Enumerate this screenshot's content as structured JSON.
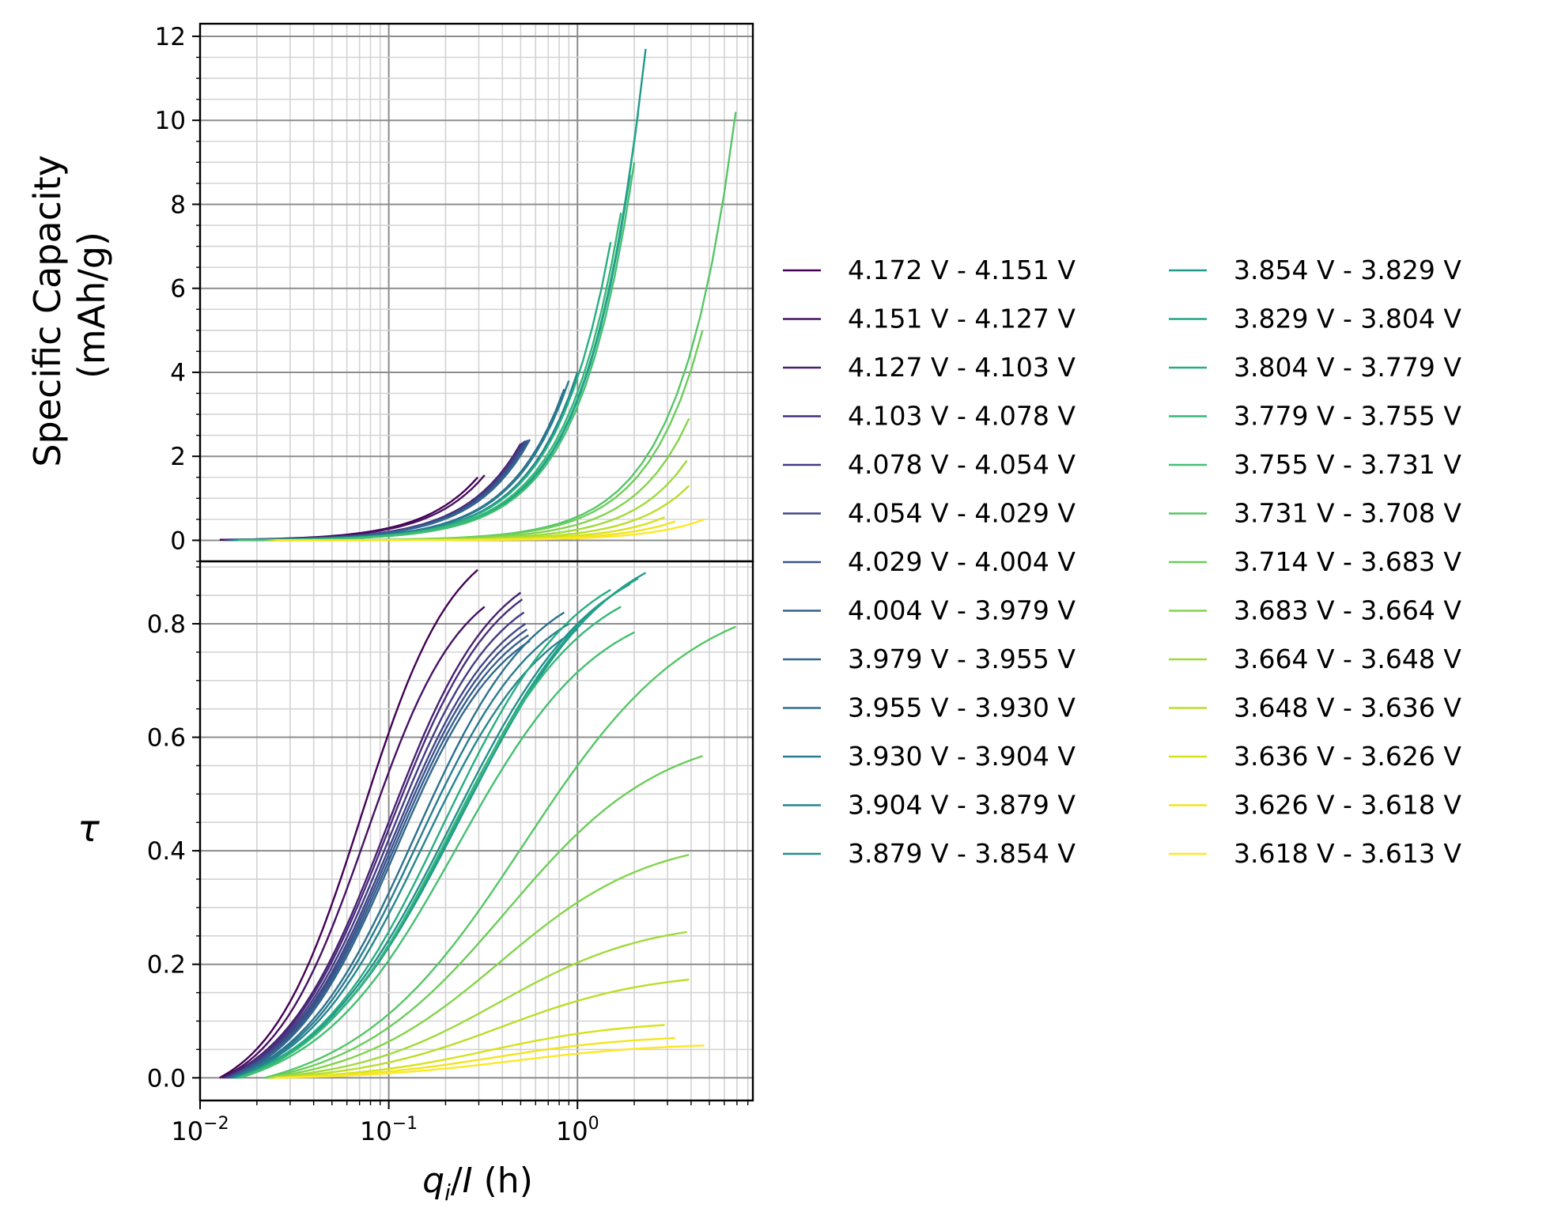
{
  "chart_data": {
    "type": "line",
    "xlabel": "q_i/I (h)",
    "x_scale": "log",
    "xlim": [
      0.01,
      8.5
    ],
    "x_ticks": [
      {
        "base": "10",
        "exp": "−2"
      },
      {
        "base": "10",
        "exp": "−1"
      },
      {
        "base": "10",
        "exp": "0"
      }
    ],
    "grid": true,
    "legend_location": "right (outside), two columns",
    "colormap": "viridis",
    "panels": [
      {
        "name": "capacity",
        "ylabel_lines": [
          "Specific Capacity",
          "(mAh/g)"
        ],
        "ylim": [
          -0.5,
          12.3
        ],
        "y_ticks": [
          "0",
          "2",
          "4",
          "6",
          "8",
          "10",
          "12"
        ]
      },
      {
        "name": "tau",
        "ylabel": "τ",
        "ylim": [
          -0.04,
          0.91
        ],
        "y_ticks": [
          "0.0",
          "0.2",
          "0.4",
          "0.6",
          "0.8"
        ]
      }
    ],
    "series": [
      {
        "name": "4.172 V - 4.151 V",
        "color": "#440154",
        "x_start": 0.0127,
        "x_end": 0.296,
        "capacity_end": 1.5,
        "tau_end": 0.895
      },
      {
        "name": "4.151 V - 4.127 V",
        "color": "#471164",
        "x_start": 0.0131,
        "x_end": 0.322,
        "capacity_end": 1.55,
        "tau_end": 0.83
      },
      {
        "name": "4.127 V - 4.103 V",
        "color": "#482071",
        "x_start": 0.0133,
        "x_end": 0.5,
        "capacity_end": 2.3,
        "tau_end": 0.855
      },
      {
        "name": "4.103 V - 4.078 V",
        "color": "#472e7c",
        "x_start": 0.0135,
        "x_end": 0.51,
        "capacity_end": 2.32,
        "tau_end": 0.843
      },
      {
        "name": "4.078 V - 4.054 V",
        "color": "#443b84",
        "x_start": 0.0137,
        "x_end": 0.52,
        "capacity_end": 2.35,
        "tau_end": 0.82
      },
      {
        "name": "4.054 V - 4.029 V",
        "color": "#404688",
        "x_start": 0.0139,
        "x_end": 0.53,
        "capacity_end": 2.37,
        "tau_end": 0.8
      },
      {
        "name": "4.029 V - 4.004 V",
        "color": "#3b528b",
        "x_start": 0.0141,
        "x_end": 0.54,
        "capacity_end": 2.38,
        "tau_end": 0.79
      },
      {
        "name": "4.004 V - 3.979 V",
        "color": "#365d8d",
        "x_start": 0.0143,
        "x_end": 0.55,
        "capacity_end": 2.39,
        "tau_end": 0.78
      },
      {
        "name": "3.979 V - 3.955 V",
        "color": "#31678e",
        "x_start": 0.0145,
        "x_end": 0.56,
        "capacity_end": 2.4,
        "tau_end": 0.77
      },
      {
        "name": "3.955 V - 3.930 V",
        "color": "#2c718e",
        "x_start": 0.0147,
        "x_end": 0.85,
        "capacity_end": 3.6,
        "tau_end": 0.82
      },
      {
        "name": "3.930 V - 3.904 V",
        "color": "#287c8e",
        "x_start": 0.0149,
        "x_end": 0.9,
        "capacity_end": 3.8,
        "tau_end": 0.8
      },
      {
        "name": "3.904 V - 3.879 V",
        "color": "#24868e",
        "x_start": 0.0151,
        "x_end": 1.0,
        "capacity_end": 4.0,
        "tau_end": 0.79
      },
      {
        "name": "3.879 V - 3.854 V",
        "color": "#21908d",
        "x_start": 0.0153,
        "x_end": 1.9,
        "capacity_end": 8.7,
        "tau_end": 0.87
      },
      {
        "name": "3.854 V - 3.829 V",
        "color": "#1f9a8a",
        "x_start": 0.0155,
        "x_end": 2.3,
        "capacity_end": 11.7,
        "tau_end": 0.89
      },
      {
        "name": "3.829 V - 3.804 V",
        "color": "#20a486",
        "x_start": 0.0157,
        "x_end": 2.1,
        "capacity_end": 10.2,
        "tau_end": 0.88
      },
      {
        "name": "3.804 V - 3.779 V",
        "color": "#27ad81",
        "x_start": 0.0159,
        "x_end": 1.5,
        "capacity_end": 7.1,
        "tau_end": 0.86
      },
      {
        "name": "3.779 V - 3.755 V",
        "color": "#35b779",
        "x_start": 0.0161,
        "x_end": 1.7,
        "capacity_end": 7.8,
        "tau_end": 0.83
      },
      {
        "name": "3.755 V - 3.731 V",
        "color": "#43bf71",
        "x_start": 0.0163,
        "x_end": 2.0,
        "capacity_end": 9.0,
        "tau_end": 0.785
      },
      {
        "name": "3.731 V - 3.708 V",
        "color": "#56c667",
        "x_start": 0.022,
        "x_end": 6.9,
        "capacity_end": 10.2,
        "tau_end": 0.795
      },
      {
        "name": "3.714 V - 3.683 V",
        "color": "#6ccd5a",
        "x_start": 0.0225,
        "x_end": 4.6,
        "capacity_end": 5.0,
        "tau_end": 0.567
      },
      {
        "name": "3.683 V - 3.664 V",
        "color": "#84d44b",
        "x_start": 0.023,
        "x_end": 3.9,
        "capacity_end": 2.9,
        "tau_end": 0.393
      },
      {
        "name": "3.664 V - 3.648 V",
        "color": "#9fda3a",
        "x_start": 0.0235,
        "x_end": 3.8,
        "capacity_end": 1.9,
        "tau_end": 0.257
      },
      {
        "name": "3.648 V - 3.636 V",
        "color": "#bade28",
        "x_start": 0.024,
        "x_end": 3.9,
        "capacity_end": 1.3,
        "tau_end": 0.173
      },
      {
        "name": "3.636 V - 3.626 V",
        "color": "#d5e21a",
        "x_start": 0.0245,
        "x_end": 2.9,
        "capacity_end": 0.55,
        "tau_end": 0.093
      },
      {
        "name": "3.626 V - 3.618 V",
        "color": "#f1e51d",
        "x_start": 0.025,
        "x_end": 3.3,
        "capacity_end": 0.45,
        "tau_end": 0.07
      },
      {
        "name": "3.618 V - 3.613 V",
        "color": "#fde725",
        "x_start": 0.0255,
        "x_end": 4.7,
        "capacity_end": 0.5,
        "tau_end": 0.057
      }
    ]
  }
}
